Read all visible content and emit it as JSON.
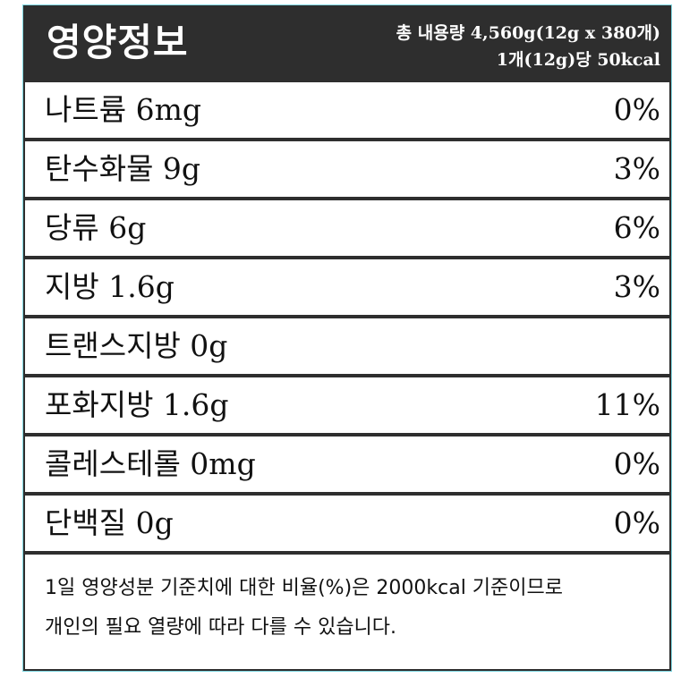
{
  "header": {
    "title": "영양정보",
    "total_line": "총 내용량  4,560g(12g x 380개)",
    "per_unit_line": "1개(12g)당 50kcal"
  },
  "nutrients": [
    {
      "name": "나트륨 6mg",
      "percent": "0%"
    },
    {
      "name": "탄수화물 9g",
      "percent": "3%"
    },
    {
      "name": "당류 6g",
      "percent": "6%"
    },
    {
      "name": "지방 1.6g",
      "percent": "3%"
    },
    {
      "name": "트랜스지방 0g",
      "percent": ""
    },
    {
      "name": "포화지방 1.6g",
      "percent": "11%"
    },
    {
      "name": "콜레스테롤 0mg",
      "percent": "0%"
    },
    {
      "name": "단백질 0g",
      "percent": "0%"
    }
  ],
  "footnote": {
    "line1": "1일 영양성분 기준치에 대한 비율(%)은 2000kcal 기준이므로",
    "line2": "개인의 필요 열량에 따라 다를 수 있습니다."
  },
  "colors": {
    "header_bg": "#2e2e2e",
    "frame_outline": "#7fd6e0"
  }
}
